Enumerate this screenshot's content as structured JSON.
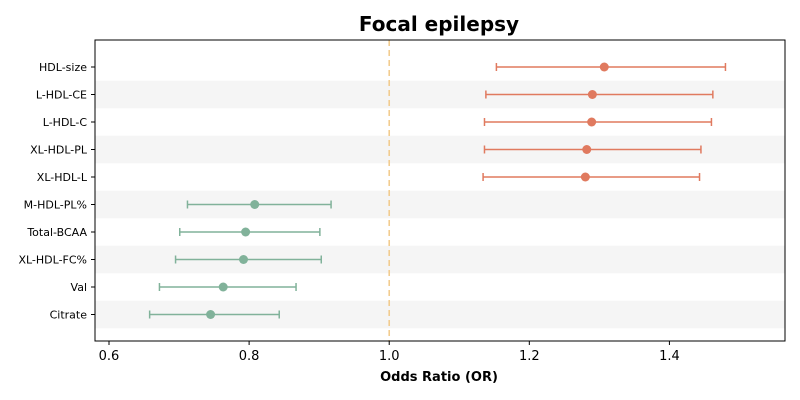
{
  "chart_data": {
    "type": "forest",
    "title": "Focal epilepsy",
    "xlabel": "Odds Ratio (OR)",
    "xlim": [
      0.58,
      1.565
    ],
    "xticks": [
      0.6,
      0.8,
      1.0,
      1.2,
      1.4
    ],
    "xtick_labels": [
      "0.6",
      "0.8",
      "1.0",
      "1.2",
      "1.4"
    ],
    "reference_line": 1.0,
    "grid": false,
    "colors": {
      "positive": "#e07a5f",
      "negative": "#81b29a",
      "reference": "#f2cc8f",
      "band": "#f5f5f5"
    },
    "rows": [
      {
        "label": "HDL-size",
        "or": 1.307,
        "lo": 1.153,
        "hi": 1.48,
        "group": "positive"
      },
      {
        "label": "L-HDL-CE",
        "or": 1.29,
        "lo": 1.138,
        "hi": 1.462,
        "group": "positive"
      },
      {
        "label": "L-HDL-C",
        "or": 1.289,
        "lo": 1.136,
        "hi": 1.46,
        "group": "positive"
      },
      {
        "label": "XL-HDL-PL",
        "or": 1.282,
        "lo": 1.136,
        "hi": 1.445,
        "group": "positive"
      },
      {
        "label": "XL-HDL-L",
        "or": 1.28,
        "lo": 1.134,
        "hi": 1.443,
        "group": "positive"
      },
      {
        "label": "M-HDL-PL%",
        "or": 0.808,
        "lo": 0.712,
        "hi": 0.917,
        "group": "negative"
      },
      {
        "label": "Total-BCAA",
        "or": 0.795,
        "lo": 0.701,
        "hi": 0.901,
        "group": "negative"
      },
      {
        "label": "XL-HDL-FC%",
        "or": 0.792,
        "lo": 0.695,
        "hi": 0.903,
        "group": "negative"
      },
      {
        "label": "Val",
        "or": 0.763,
        "lo": 0.672,
        "hi": 0.867,
        "group": "negative"
      },
      {
        "label": "Citrate",
        "or": 0.745,
        "lo": 0.658,
        "hi": 0.843,
        "group": "negative"
      }
    ]
  }
}
